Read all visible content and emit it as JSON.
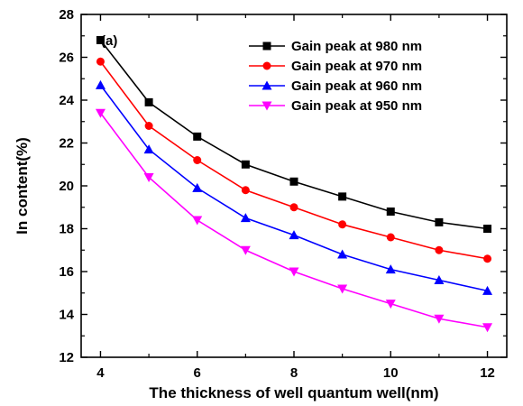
{
  "chart_data": {
    "type": "line",
    "panel_label": "(a)",
    "xlabel": "The thickness of well quantum well(nm)",
    "ylabel": "In content(%)",
    "xlim": [
      3.6,
      12.4
    ],
    "ylim": [
      12,
      28
    ],
    "xticks": [
      4,
      6,
      8,
      10,
      12
    ],
    "yticks": [
      12,
      14,
      16,
      18,
      20,
      22,
      24,
      26,
      28
    ],
    "x": [
      4,
      5,
      6,
      7,
      8,
      9,
      10,
      11,
      12
    ],
    "grid": false,
    "legend_position": "top-right",
    "series": [
      {
        "name": "Gain peak at 980 nm",
        "color": "#000000",
        "marker": "square",
        "values": [
          26.8,
          23.9,
          22.3,
          21.0,
          20.2,
          19.5,
          18.8,
          18.3,
          18.0
        ]
      },
      {
        "name": "Gain peak at 970 nm",
        "color": "#ff0000",
        "marker": "circle",
        "values": [
          25.8,
          22.8,
          21.2,
          19.8,
          19.0,
          18.2,
          17.6,
          17.0,
          16.6
        ]
      },
      {
        "name": "Gain peak at 960 nm",
        "color": "#0000ff",
        "marker": "triangle-up",
        "values": [
          24.7,
          21.7,
          19.9,
          18.5,
          17.7,
          16.8,
          16.1,
          15.6,
          15.1
        ]
      },
      {
        "name": "Gain peak at 950 nm",
        "color": "#ff00ff",
        "marker": "triangle-down",
        "values": [
          23.4,
          20.4,
          18.4,
          17.0,
          16.0,
          15.2,
          14.5,
          13.8,
          13.4
        ]
      }
    ]
  }
}
